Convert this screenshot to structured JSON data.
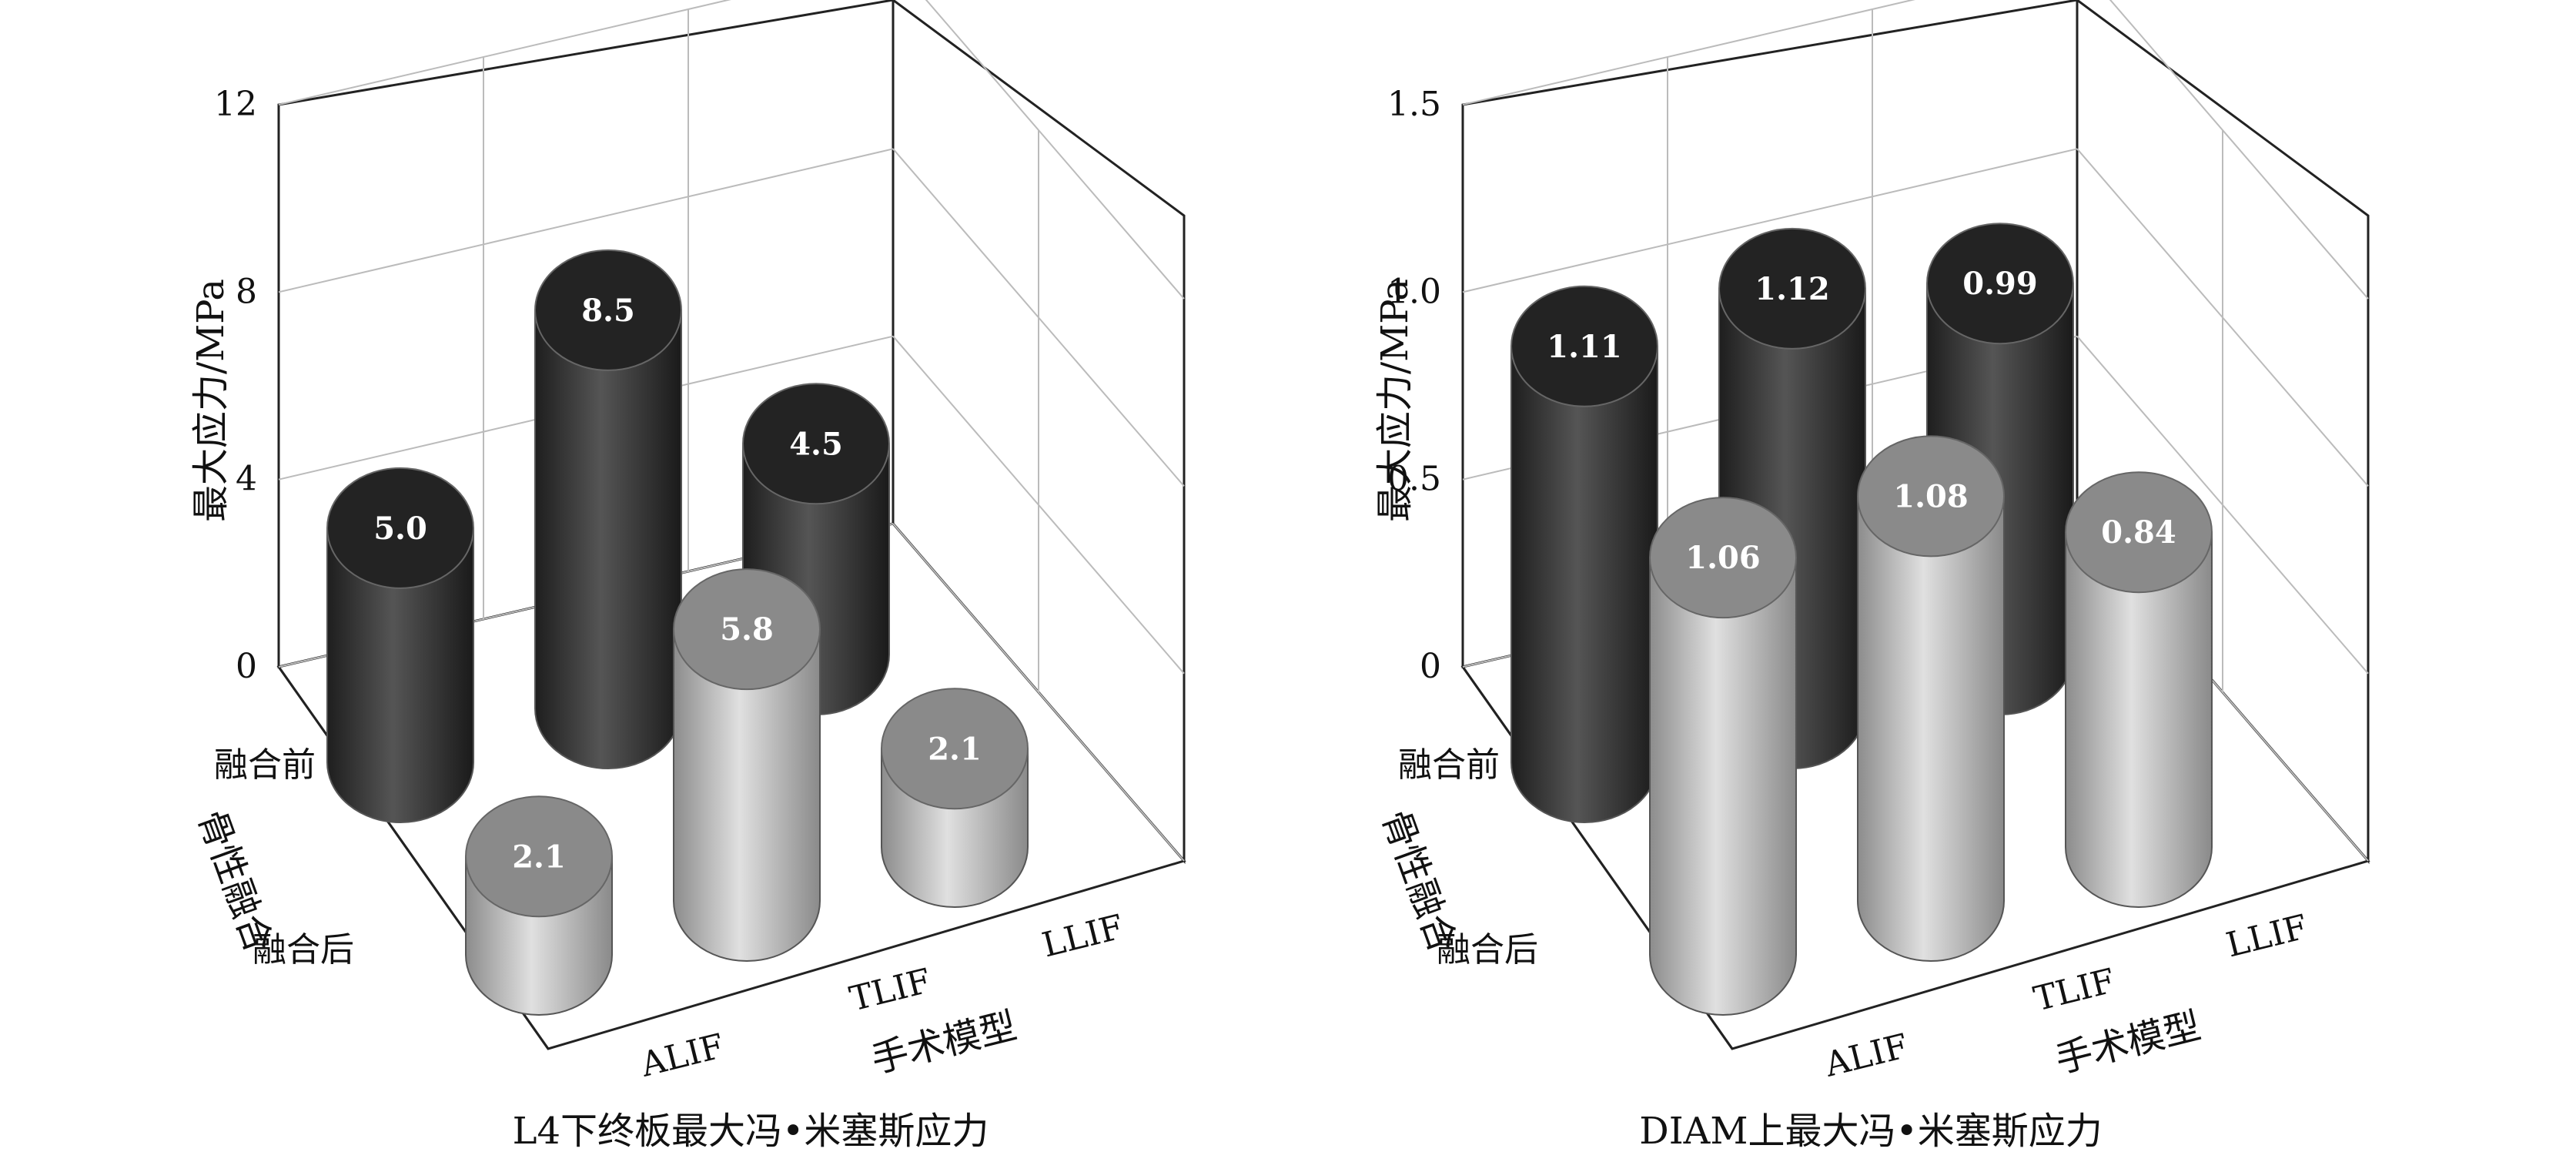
{
  "colors": {
    "before": "#3a3a3a",
    "after": "#a8a8a8",
    "after_top": "#8a8a8a",
    "before_top": "#232323"
  },
  "chart_data": [
    {
      "type": "bar",
      "caption": "L4下终板最大冯•米塞斯应力",
      "ylabel": "最大应力/MPa",
      "xlabel": "手术模型",
      "zlabel": "骨性融合",
      "categories": [
        "ALIF",
        "TLIF",
        "LLIF"
      ],
      "depth_categories": [
        "融合前",
        "融合后"
      ],
      "ylim": [
        0,
        12
      ],
      "yticks": [
        "0",
        "4",
        "8",
        "12"
      ],
      "series": [
        {
          "name": "融合前",
          "values": [
            5.0,
            8.5,
            4.5
          ],
          "labels": [
            "5.0",
            "8.5",
            "4.5"
          ]
        },
        {
          "name": "融合后",
          "values": [
            2.1,
            5.8,
            2.1
          ],
          "labels": [
            "2.1",
            "5.8",
            "2.1"
          ]
        }
      ]
    },
    {
      "type": "bar",
      "caption": "DIAM上最大冯•米塞斯应力",
      "ylabel": "最大应力/MPa",
      "xlabel": "手术模型",
      "zlabel": "骨性融合",
      "categories": [
        "ALIF",
        "TLIF",
        "LLIF"
      ],
      "depth_categories": [
        "融合前",
        "融合后"
      ],
      "ylim": [
        0,
        1.5
      ],
      "yticks": [
        "0",
        "0.5",
        "1.0",
        "1.5"
      ],
      "series": [
        {
          "name": "融合前",
          "values": [
            1.11,
            1.12,
            0.99
          ],
          "labels": [
            "1.11",
            "1.12",
            "0.99"
          ]
        },
        {
          "name": "融合后",
          "values": [
            1.06,
            1.08,
            0.84
          ],
          "labels": [
            "1.06",
            "1.08",
            "0.84"
          ]
        }
      ]
    }
  ]
}
